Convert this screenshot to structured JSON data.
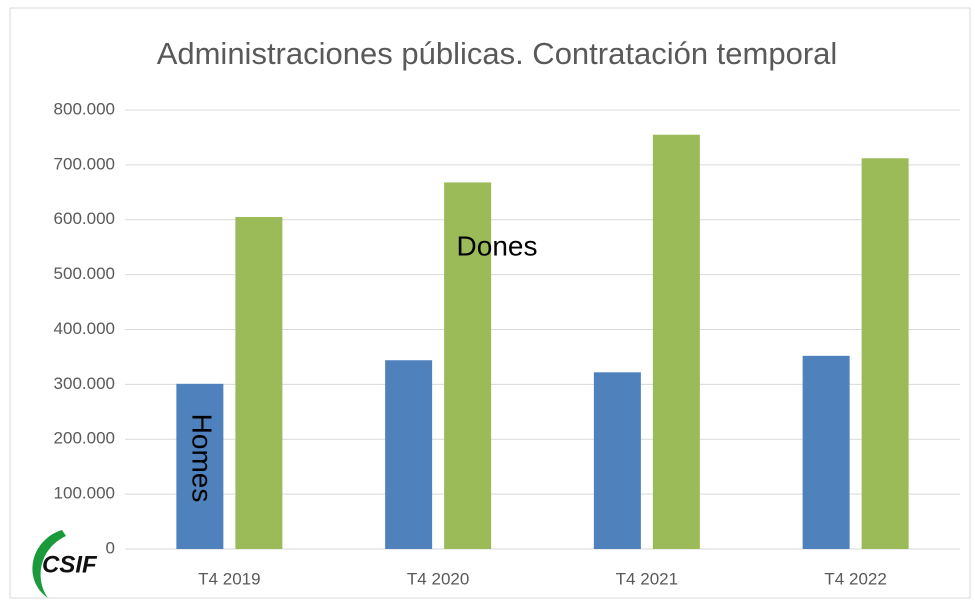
{
  "chart_data": {
    "type": "bar",
    "title": "Administraciones públicas. Contratación temporal",
    "categories": [
      "T4 2019",
      "T4 2020",
      "T4 2021",
      "T4 2022"
    ],
    "series": [
      {
        "name": "Homes",
        "color": "#4f81bd",
        "values": [
          301000,
          344000,
          322000,
          352000
        ]
      },
      {
        "name": "Dones",
        "color": "#9bbb59",
        "values": [
          605000,
          668000,
          755000,
          712000
        ]
      }
    ],
    "ylim": [
      0,
      800000
    ],
    "yticks": [
      0,
      {
        "value": 100000,
        "label": "100.000"
      },
      {
        "value": 200000,
        "label": "200.000"
      },
      {
        "value": 300000,
        "label": "300.000"
      },
      {
        "value": 400000,
        "label": "400.000"
      },
      {
        "value": 500000,
        "label": "500.000"
      },
      {
        "value": 600000,
        "label": "600.000"
      },
      {
        "value": 700000,
        "label": "700.000"
      },
      {
        "value": 800000,
        "label": "800.000"
      }
    ],
    "grid": true
  },
  "logo": "CSIF"
}
